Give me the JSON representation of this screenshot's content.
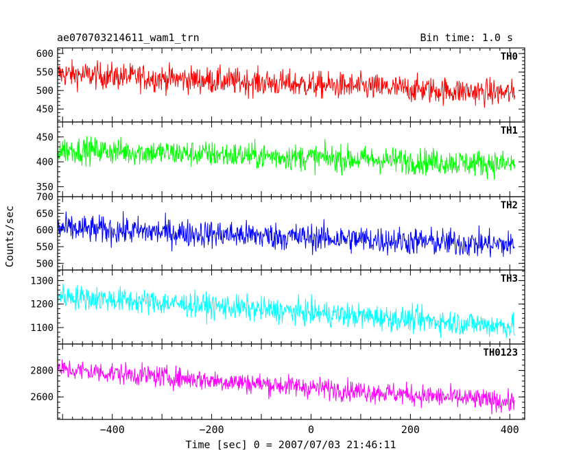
{
  "chart_data": {
    "type": "line",
    "title": "ae070703214611_wam1_trn",
    "bin_time_label": "Bin time: 1.0 s",
    "xlabel": "Time [sec] 0 = 2007/07/03 21:46:11",
    "ylabel": "Counts/sec",
    "xlim": [
      -510,
      430
    ],
    "x_ticks": [
      -400,
      -200,
      0,
      200,
      400
    ],
    "x_data_range": [
      -510,
      410
    ],
    "grid": false,
    "panels": [
      {
        "name": "TH0",
        "color": "#ff0000",
        "ylim": [
          415,
          615
        ],
        "ticks": [
          450,
          500,
          550,
          600
        ],
        "trend": [
          -510,
          545,
          410,
          492
        ],
        "noise": 26
      },
      {
        "name": "TH1",
        "color": "#00ff00",
        "ylim": [
          330,
          480
        ],
        "ticks": [
          350,
          400,
          450
        ],
        "trend": [
          -510,
          425,
          410,
          395
        ],
        "noise": 19
      },
      {
        "name": "TH2",
        "color": "#0000ff",
        "ylim": [
          480,
          700
        ],
        "ticks": [
          500,
          550,
          600,
          650,
          700
        ],
        "trend": [
          -510,
          605,
          410,
          555
        ],
        "noise": 30
      },
      {
        "name": "TH3",
        "color": "#00ffff",
        "ylim": [
          1030,
          1345
        ],
        "ticks": [
          1100,
          1200,
          1300
        ],
        "trend": [
          -510,
          1235,
          410,
          1105
        ],
        "noise": 38
      },
      {
        "name": "TH0123",
        "color": "#ff00ff",
        "ylim": [
          2430,
          3000
        ],
        "ticks": [
          2600,
          2800
        ],
        "trend": [
          -510,
          2810,
          410,
          2560
        ],
        "noise": 58
      }
    ]
  }
}
